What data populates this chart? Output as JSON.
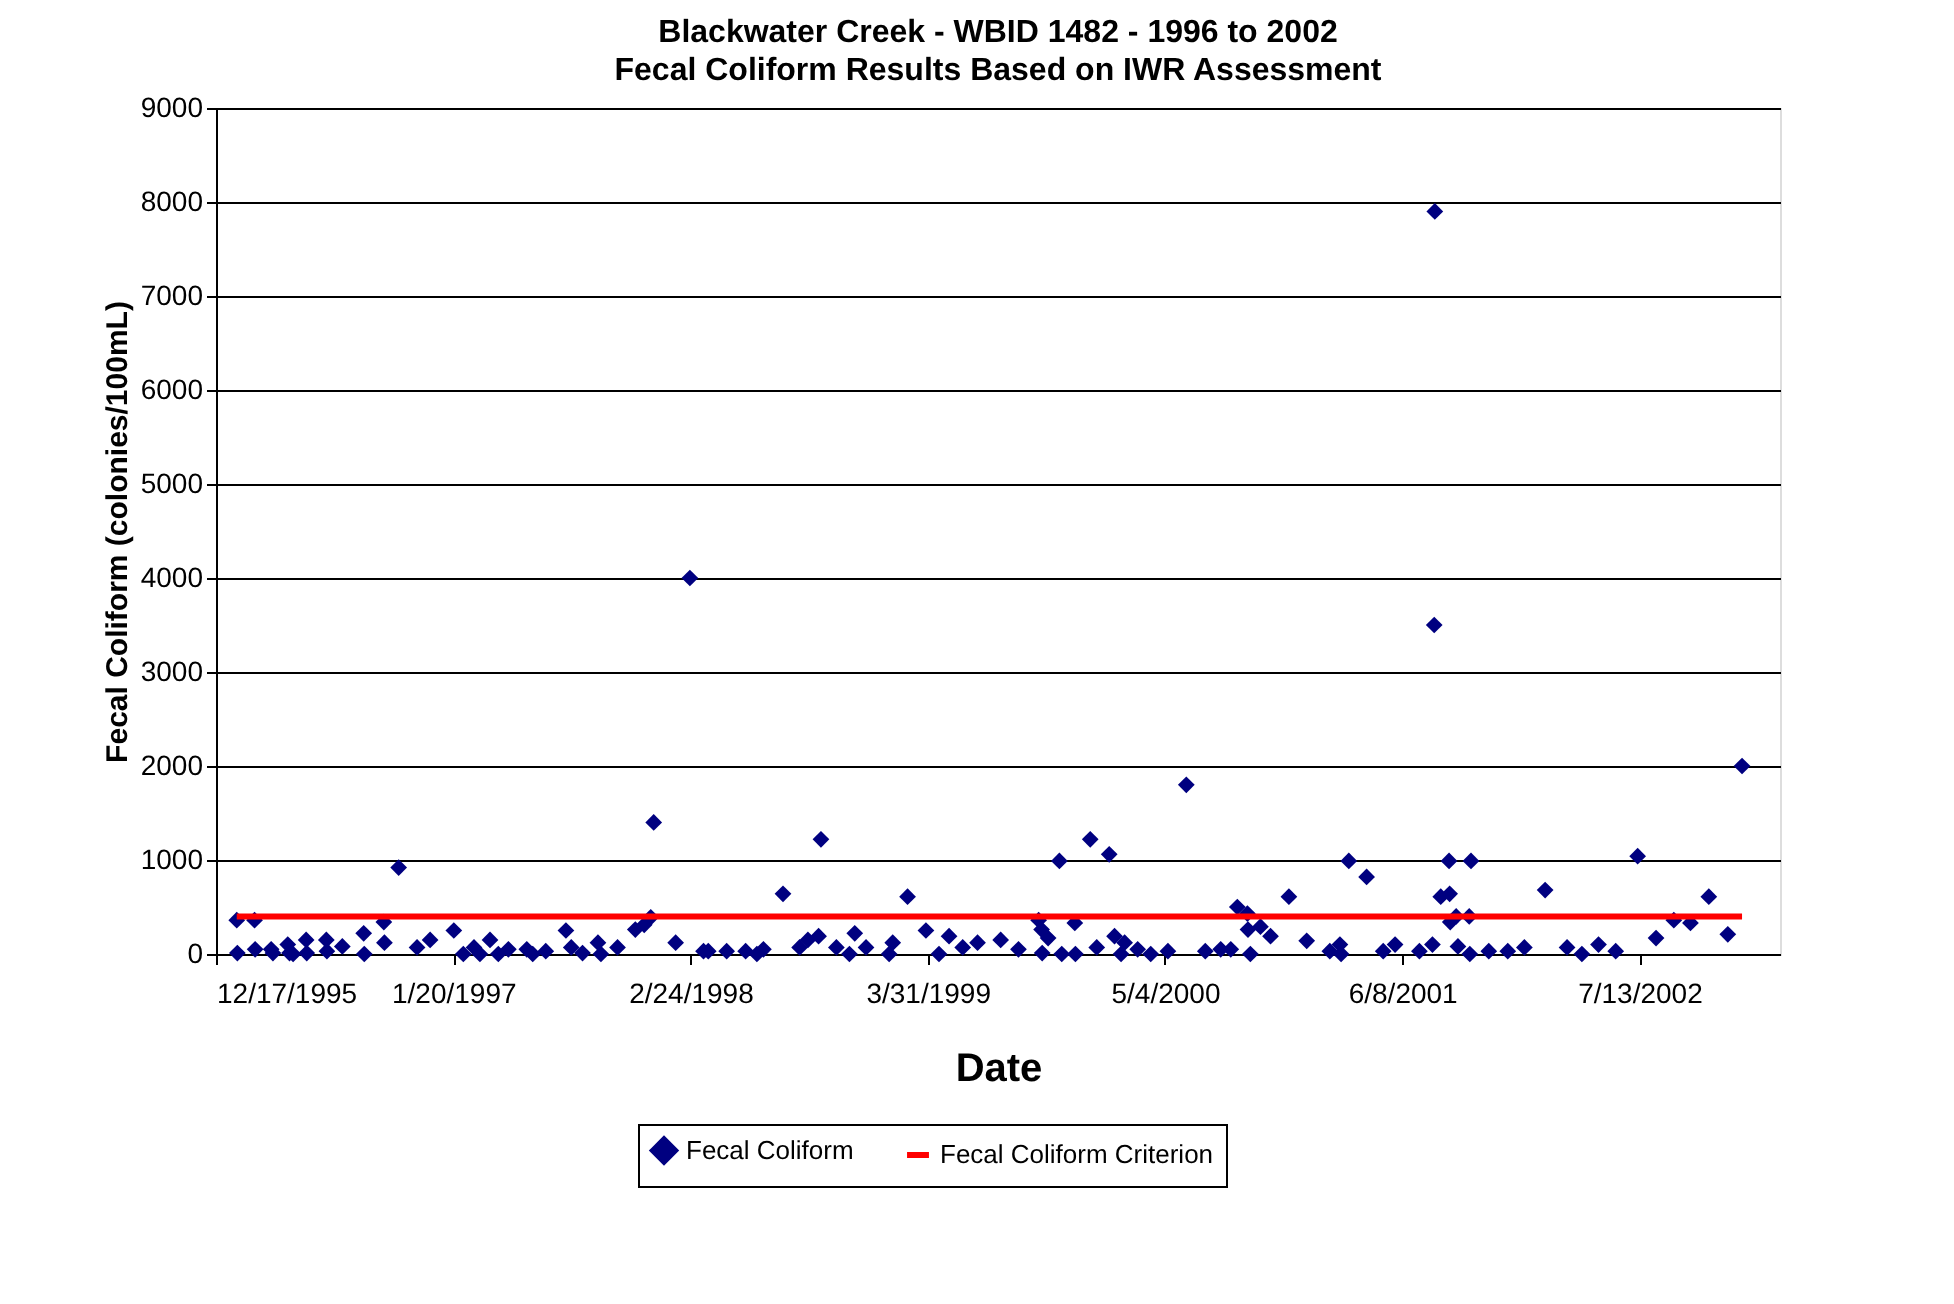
{
  "chart_data": {
    "type": "scatter",
    "title": "Blackwater Creek - WBID 1482 - 1996 to 2002",
    "subtitle": "Fecal Coliform Results Based on IWR Assessment",
    "xlabel": "Date",
    "ylabel": "Fecal Coliform (colonies/100mL)",
    "xlim": [
      "1995-12-17",
      "2003-03-07"
    ],
    "xticks": [
      {
        "value": "1995-12-17",
        "label": "12/17/1995"
      },
      {
        "value": "1997-01-20",
        "label": "1/20/1997"
      },
      {
        "value": "1998-02-24",
        "label": "2/24/1998"
      },
      {
        "value": "1999-03-31",
        "label": "3/31/1999"
      },
      {
        "value": "2000-05-04",
        "label": "5/4/2000"
      },
      {
        "value": "2001-06-08",
        "label": "6/8/2001"
      },
      {
        "value": "2002-07-13",
        "label": "7/13/2002"
      }
    ],
    "ylim": [
      0,
      9000
    ],
    "yticks": [
      0,
      1000,
      2000,
      3000,
      4000,
      5000,
      6000,
      7000,
      8000,
      9000
    ],
    "grid": "y",
    "legend": "bottom",
    "series": [
      {
        "name": "Fecal Coliform",
        "marker": "diamond",
        "color": "#000080",
        "x": [
          "1996-01-21",
          "1996-01-22",
          "1996-02-20",
          "1996-02-21",
          "1996-03-19",
          "1996-03-22",
          "1996-04-16",
          "1996-04-19",
          "1996-04-25",
          "1996-05-17",
          "1996-05-18",
          "1996-06-20",
          "1996-06-21",
          "1996-07-17",
          "1996-08-22",
          "1996-08-23",
          "1996-09-25",
          "1996-09-26",
          "1996-10-20",
          "1996-11-20",
          "1996-12-12",
          "1997-01-21",
          "1997-02-06",
          "1997-02-24",
          "1997-03-06",
          "1997-03-23",
          "1997-04-06",
          "1997-04-23",
          "1997-05-24",
          "1997-06-03",
          "1997-06-25",
          "1997-07-29",
          "1997-08-07",
          "1997-08-26",
          "1997-09-21",
          "1997-09-26",
          "1997-10-24",
          "1997-11-23",
          "1997-12-08",
          "1997-12-19",
          "1997-12-24",
          "1998-01-30",
          "1998-02-23",
          "1998-03-18",
          "1998-03-26",
          "1998-04-26",
          "1998-05-28",
          "1998-06-16",
          "1998-06-27",
          "1998-07-30",
          "1998-08-27",
          "1998-09-10",
          "1998-09-28",
          "1998-10-02",
          "1998-10-28",
          "1998-11-19",
          "1998-11-28",
          "1998-12-17",
          "1999-01-25",
          "1999-01-31",
          "1999-02-25",
          "1999-03-28",
          "1999-04-19",
          "1999-05-06",
          "1999-05-29",
          "1999-06-23",
          "1999-08-01",
          "1999-08-31",
          "1999-10-04",
          "1999-10-09",
          "1999-10-10",
          "1999-10-20",
          "1999-11-08",
          "1999-11-12",
          "1999-12-04",
          "1999-12-05",
          "1999-12-30",
          "2000-01-10",
          "2000-01-31",
          "2000-02-09",
          "2000-02-20",
          "2000-02-26",
          "2000-03-19",
          "2000-04-10",
          "2000-05-09",
          "2000-06-09",
          "2000-07-11",
          "2000-08-06",
          "2000-08-23",
          "2000-09-03",
          "2000-09-20",
          "2000-09-21",
          "2000-09-25",
          "2000-10-12",
          "2000-10-29",
          "2000-11-29",
          "2000-12-29",
          "2001-02-06",
          "2001-02-23",
          "2001-02-25",
          "2001-03-10",
          "2001-04-09",
          "2001-05-07",
          "2001-05-27",
          "2001-07-07",
          "2001-07-29",
          "2001-08-01",
          "2001-08-02",
          "2001-08-12",
          "2001-08-26",
          "2001-08-27",
          "2001-08-28",
          "2001-09-07",
          "2001-09-10",
          "2001-09-29",
          "2001-09-30",
          "2001-10-02",
          "2001-11-01",
          "2001-12-03",
          "2001-12-31",
          "2002-02-04",
          "2002-03-13",
          "2002-04-07",
          "2002-05-05",
          "2002-06-03",
          "2002-07-10",
          "2002-08-10",
          "2002-09-09",
          "2002-10-07",
          "2002-11-07",
          "2002-12-09",
          "2003-01-02"
        ],
        "values": [
          360,
          10,
          360,
          50,
          50,
          10,
          100,
          10,
          0,
          150,
          10,
          150,
          30,
          80,
          220,
          0,
          340,
          120,
          920,
          70,
          150,
          250,
          0,
          70,
          0,
          150,
          0,
          50,
          50,
          0,
          30,
          250,
          70,
          10,
          120,
          0,
          70,
          260,
          310,
          390,
          1400,
          120,
          4000,
          30,
          30,
          30,
          30,
          0,
          50,
          640,
          70,
          150,
          190,
          1220,
          70,
          0,
          220,
          70,
          0,
          120,
          610,
          250,
          0,
          190,
          70,
          120,
          150,
          50,
          360,
          260,
          10,
          170,
          990,
          0,
          330,
          0,
          1220,
          70,
          1060,
          190,
          0,
          120,
          50,
          0,
          30,
          1800,
          30,
          50,
          50,
          500,
          430,
          260,
          0,
          290,
          190,
          610,
          140,
          30,
          100,
          0,
          990,
          820,
          30,
          100,
          30,
          100,
          3500,
          7900,
          610,
          990,
          640,
          340,
          400,
          80,
          400,
          0,
          990,
          30,
          30,
          70,
          680,
          70,
          0,
          100,
          30,
          1040,
          170,
          360,
          330,
          610,
          210,
          2000
        ]
      },
      {
        "name": "Fecal Coliform Criterion",
        "type": "line",
        "line_style": "solid",
        "color": "#ff0000",
        "x": [
          "1996-01-21",
          "2003-01-02"
        ],
        "values": [
          400,
          400
        ]
      }
    ]
  }
}
